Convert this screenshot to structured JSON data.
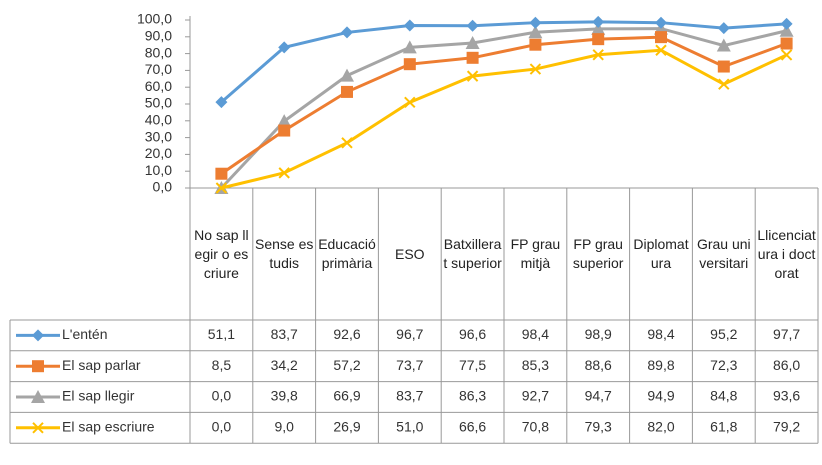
{
  "chart_data": {
    "type": "line",
    "categories": [
      "No sap llegir o escriure",
      "Sense estudis",
      "Educació primària",
      "ESO",
      "Batxillerat superior",
      "FP grau mitjà",
      "FP grau superior",
      "Diplomatura",
      "Grau universitari",
      "Llicenciatura i doctorat"
    ],
    "series": [
      {
        "name": "L'entén",
        "color": "#5b9bd5",
        "marker": "diamond",
        "values": [
          51.1,
          83.7,
          92.6,
          96.7,
          96.6,
          98.4,
          98.9,
          98.4,
          95.2,
          97.7
        ],
        "value_labels": [
          "51,1",
          "83,7",
          "92,6",
          "96,7",
          "96,6",
          "98,4",
          "98,9",
          "98,4",
          "95,2",
          "97,7"
        ]
      },
      {
        "name": "El sap parlar",
        "color": "#ed7d31",
        "marker": "square",
        "values": [
          8.5,
          34.2,
          57.2,
          73.7,
          77.5,
          85.3,
          88.6,
          89.8,
          72.3,
          86.0
        ],
        "value_labels": [
          "8,5",
          "34,2",
          "57,2",
          "73,7",
          "77,5",
          "85,3",
          "88,6",
          "89,8",
          "72,3",
          "86,0"
        ]
      },
      {
        "name": "El sap llegir",
        "color": "#a5a5a5",
        "marker": "triangle",
        "values": [
          0.0,
          39.8,
          66.9,
          83.7,
          86.3,
          92.7,
          94.7,
          94.9,
          84.8,
          93.6
        ],
        "value_labels": [
          "0,0",
          "39,8",
          "66,9",
          "83,7",
          "86,3",
          "92,7",
          "94,7",
          "94,9",
          "84,8",
          "93,6"
        ]
      },
      {
        "name": "El sap escriure",
        "color": "#ffc000",
        "marker": "x",
        "values": [
          0.0,
          9.0,
          26.9,
          51.0,
          66.6,
          70.8,
          79.3,
          82.0,
          61.8,
          79.2
        ],
        "value_labels": [
          "0,0",
          "9,0",
          "26,9",
          "51,0",
          "66,6",
          "70,8",
          "79,3",
          "82,0",
          "61,8",
          "79,2"
        ]
      }
    ],
    "ylim": [
      0,
      100
    ],
    "yticks": [
      {
        "value": 0,
        "label": "0,0"
      },
      {
        "value": 10,
        "label": "10,0"
      },
      {
        "value": 20,
        "label": "20,0"
      },
      {
        "value": 30,
        "label": "30,0"
      },
      {
        "value": 40,
        "label": "40,0"
      },
      {
        "value": 50,
        "label": "50,0"
      },
      {
        "value": 60,
        "label": "60,0"
      },
      {
        "value": 70,
        "label": "70,0"
      },
      {
        "value": 80,
        "label": "80,0"
      },
      {
        "value": 90,
        "label": "90,0"
      },
      {
        "value": 100,
        "label": "100,0"
      }
    ]
  }
}
